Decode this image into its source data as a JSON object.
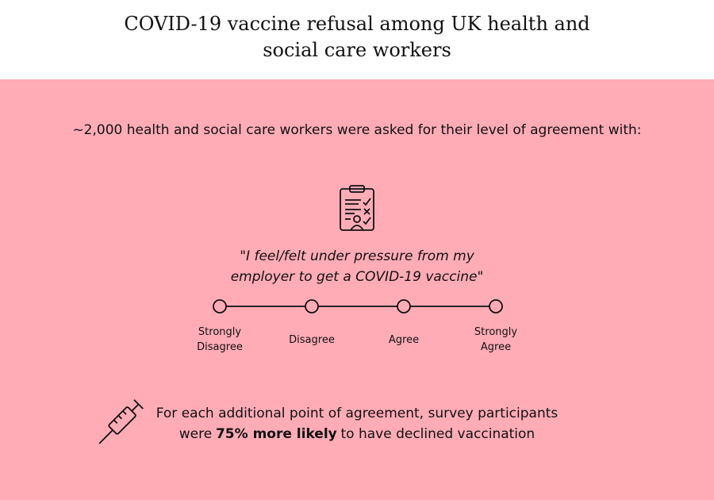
{
  "header": {
    "title": "COVID-19 vaccine refusal among UK health and social care workers"
  },
  "intro": "~2,000 health and social care workers were asked for their level of agreement with:",
  "statement": "\"I feel/felt under pressure from my employer to get a COVID-19 vaccine\"",
  "scale": [
    "Strongly Disagree",
    "Disagree",
    "Agree",
    "Strongly Agree"
  ],
  "finding": {
    "line1": "For each additional point of agreement, survey participants",
    "line2_start": "were",
    "highlight": "75% more likely",
    "line2_end": "to have declined vaccination"
  }
}
